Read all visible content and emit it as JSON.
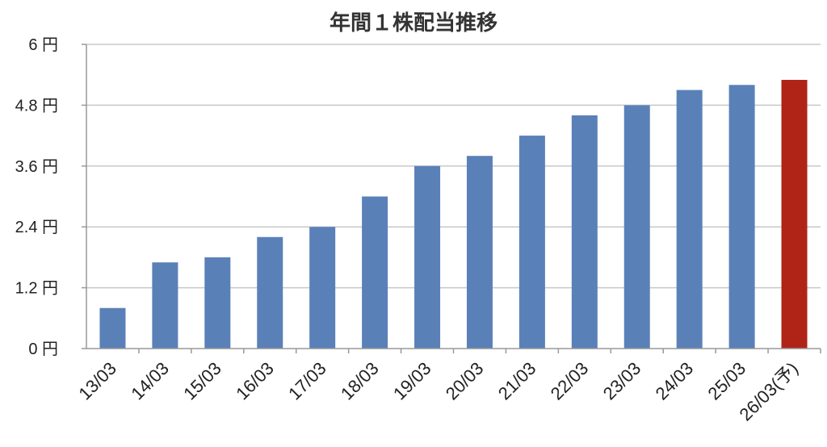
{
  "chart_data": {
    "type": "bar",
    "title": "年間１株配当推移",
    "xlabel": "",
    "ylabel": "",
    "ylim": [
      0,
      6
    ],
    "yticks": [
      {
        "value": 0,
        "label": "0 円"
      },
      {
        "value": 1.2,
        "label": "1.2 円"
      },
      {
        "value": 2.4,
        "label": "2.4 円"
      },
      {
        "value": 3.6,
        "label": "3.6 円"
      },
      {
        "value": 4.8,
        "label": "4.8 円"
      },
      {
        "value": 6,
        "label": "6 円"
      }
    ],
    "grid": true,
    "categories": [
      "13/03",
      "14/03",
      "15/03",
      "16/03",
      "17/03",
      "18/03",
      "19/03",
      "20/03",
      "21/03",
      "22/03",
      "23/03",
      "24/03",
      "25/03",
      "26/03(予)"
    ],
    "values": [
      0.8,
      1.7,
      1.8,
      2.2,
      2.4,
      3.0,
      3.6,
      3.8,
      4.2,
      4.6,
      4.8,
      5.1,
      5.2,
      5.3
    ],
    "colors": [
      "#5a80b8",
      "#5a80b8",
      "#5a80b8",
      "#5a80b8",
      "#5a80b8",
      "#5a80b8",
      "#5a80b8",
      "#5a80b8",
      "#5a80b8",
      "#5a80b8",
      "#5a80b8",
      "#5a80b8",
      "#5a80b8",
      "#b02418"
    ]
  }
}
